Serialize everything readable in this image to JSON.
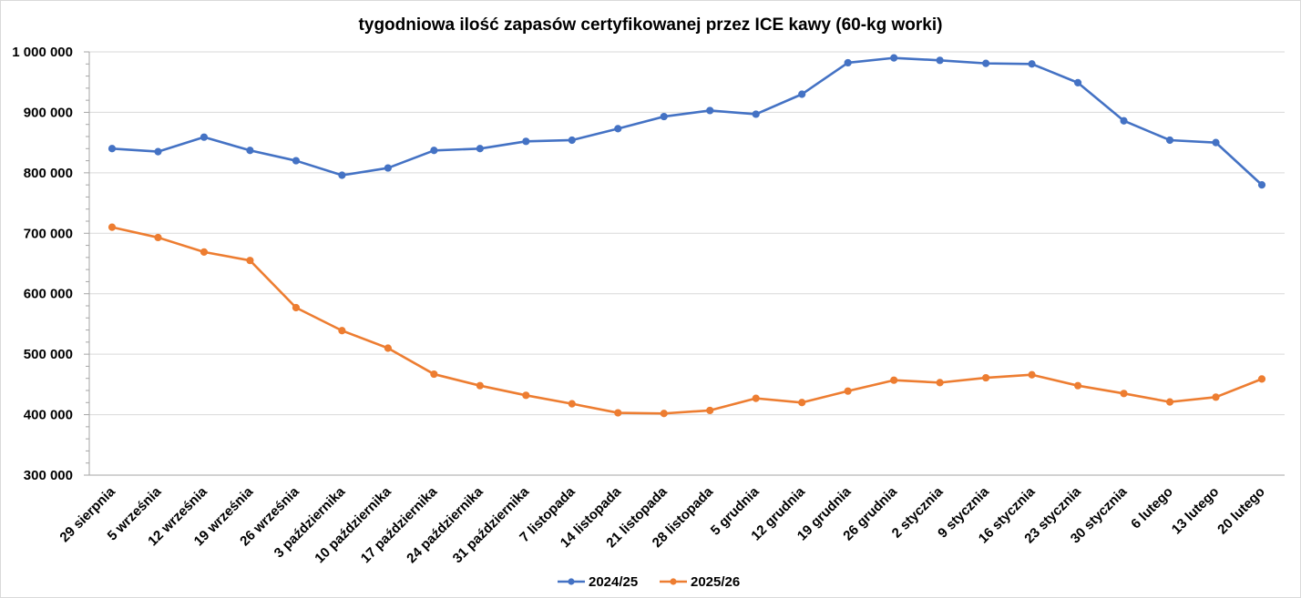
{
  "chart_data": {
    "type": "line",
    "title": "tygodniowa ilość zapasów certyfikowanej przez ICE kawy (60-kg worki)",
    "xlabel": "",
    "ylabel": "",
    "ylim": [
      300000,
      1000000
    ],
    "yticks": [
      300000,
      400000,
      500000,
      600000,
      700000,
      800000,
      900000,
      1000000
    ],
    "ytick_labels": [
      "300 000",
      "400 000",
      "500 000",
      "600 000",
      "700 000",
      "800 000",
      "900 000",
      "1 000 000"
    ],
    "grid": true,
    "legend_position": "bottom",
    "categories": [
      "29 sierpnia",
      "5 września",
      "12 września",
      "19 września",
      "26 września",
      "3 października",
      "10 października",
      "17 października",
      "24 października",
      "31 października",
      "7 listopada",
      "14 listopada",
      "21 listopada",
      "28 listopada",
      "5 grudnia",
      "12 grudnia",
      "19 grudnia",
      "26 grudnia",
      "2 stycznia",
      "9 stycznia",
      "16 stycznia",
      "23 stycznia",
      "30 stycznia",
      "6 lutego",
      "13 lutego",
      "20 lutego"
    ],
    "series": [
      {
        "name": "2024/25",
        "color": "#4472c4",
        "values": [
          840000,
          835000,
          859000,
          837000,
          820000,
          796000,
          808000,
          837000,
          840000,
          852000,
          854000,
          873000,
          893000,
          903000,
          897000,
          930000,
          982000,
          990000,
          986000,
          981000,
          980000,
          949000,
          886000,
          854000,
          850000,
          780000
        ]
      },
      {
        "name": "2025/26",
        "color": "#ed7d31",
        "values": [
          710000,
          693000,
          669000,
          655000,
          577000,
          539000,
          510000,
          467000,
          448000,
          432000,
          418000,
          403000,
          402000,
          407000,
          427000,
          420000,
          439000,
          457000,
          453000,
          461000,
          466000,
          448000,
          435000,
          421000,
          429000,
          459000
        ]
      }
    ]
  }
}
